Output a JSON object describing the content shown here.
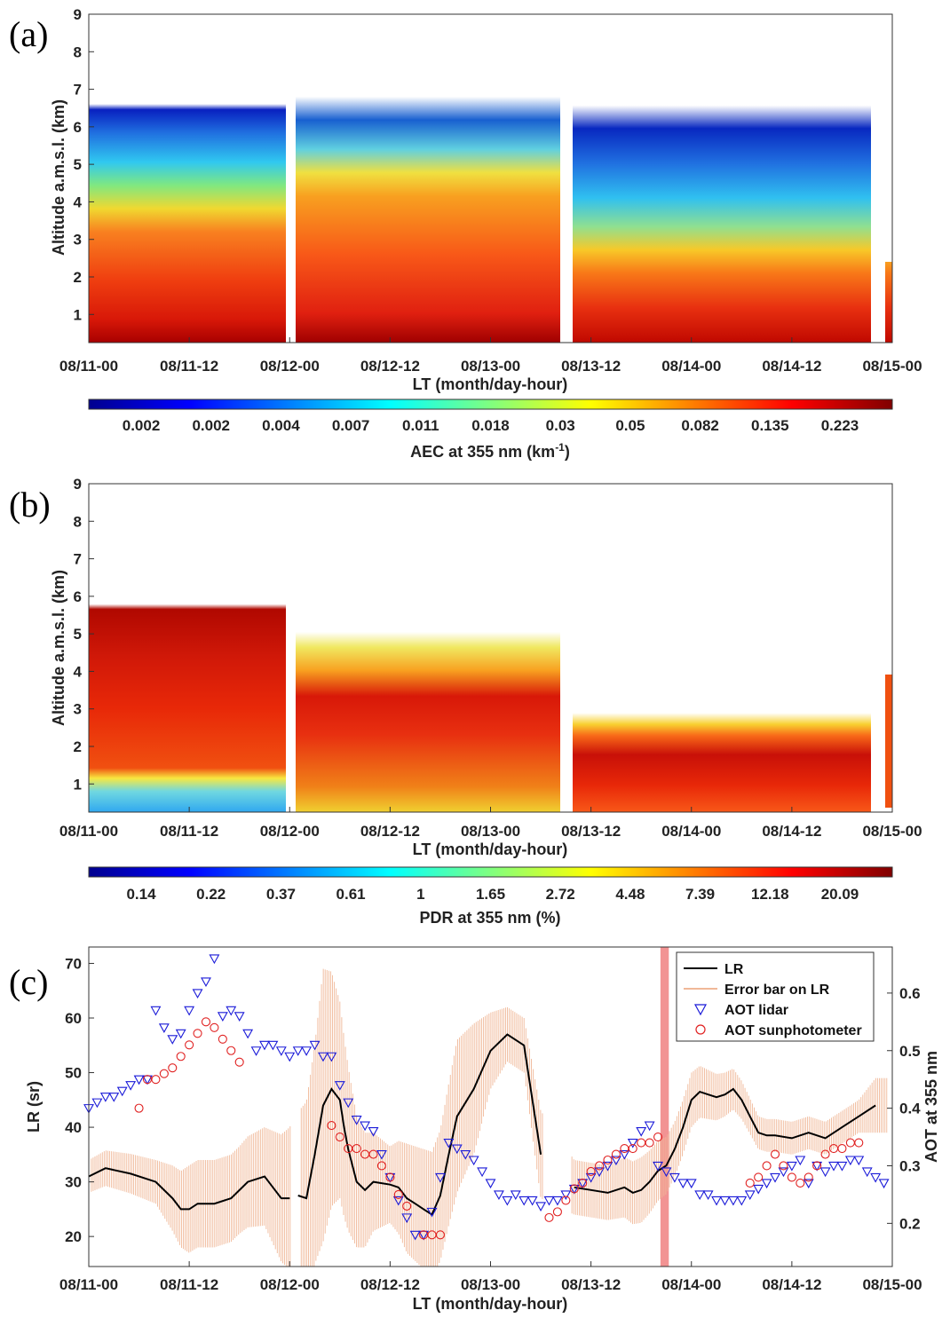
{
  "chart_data": [
    {
      "panel": "(a)",
      "type": "heatmap",
      "xlabel": "LT (month/day-hour)",
      "ylabel": "Altitude a.m.s.l. (km)",
      "x_ticks": [
        "08/11-00",
        "08/11-12",
        "08/12-00",
        "08/12-12",
        "08/13-00",
        "08/13-12",
        "08/14-00",
        "08/14-12",
        "08/15-00"
      ],
      "y_ticks": [
        "1",
        "2",
        "3",
        "4",
        "5",
        "6",
        "7",
        "8",
        "9"
      ],
      "ylim": [
        0.25,
        9
      ],
      "colorbar_label": "AEC at 355 nm (km",
      "colorbar_label_exp": "-1",
      "colorbar_label_end": ")",
      "colorbar_ticks": [
        "0.002",
        "0.002",
        "0.004",
        "0.007",
        "0.011",
        "0.018",
        "0.03",
        "0.05",
        "0.082",
        "0.135",
        "0.223"
      ],
      "colormap": "jet",
      "data_gaps_hours": [
        [
          54.3,
          55.2
        ],
        [
          101.5,
          102.1
        ]
      ]
    },
    {
      "panel": "(b)",
      "type": "heatmap",
      "xlabel": "LT (month/day-hour)",
      "ylabel": "Altitude a.m.s.l. (km)",
      "x_ticks": [
        "08/11-00",
        "08/11-12",
        "08/12-00",
        "08/12-12",
        "08/13-00",
        "08/13-12",
        "08/14-00",
        "08/14-12",
        "08/15-00"
      ],
      "y_ticks": [
        "1",
        "2",
        "3",
        "4",
        "5",
        "6",
        "7",
        "8",
        "9"
      ],
      "ylim": [
        0.25,
        9
      ],
      "colorbar_label": "PDR at 355 nm (%)",
      "colorbar_ticks": [
        "0.14",
        "0.22",
        "0.37",
        "0.61",
        "1",
        "1.65",
        "2.72",
        "4.48",
        "7.39",
        "12.18",
        "20.09"
      ],
      "colormap": "jet"
    },
    {
      "panel": "(c)",
      "type": "line",
      "xlabel": "LT (month/day-hour)",
      "ylabel": "LR (sr)",
      "y2label": "AOT at 355 nm",
      "x_ticks": [
        "08/11-00",
        "08/11-12",
        "08/12-00",
        "08/12-12",
        "08/13-00",
        "08/13-12",
        "08/14-00",
        "08/14-12",
        "08/15-00"
      ],
      "y_ticks": [
        "20",
        "30",
        "40",
        "50",
        "60",
        "70"
      ],
      "y2_ticks": [
        "0.2",
        "0.3",
        "0.4",
        "0.5",
        "0.6"
      ],
      "xlim_hours": [
        0,
        96
      ],
      "ylim": [
        14.5,
        73
      ],
      "y2lim": [
        0.125,
        0.68
      ],
      "highlight_hours": [
        68.3,
        69.3
      ],
      "legend": [
        "LR",
        "Error bar on LR",
        "AOT lidar",
        "AOT sunphotometer"
      ],
      "legend_position": "top-right",
      "colors": {
        "lr": "#000000",
        "error": "#f0b898",
        "aot_lidar": "#1a1ad8",
        "aot_sun": "#e02020",
        "highlight": "#f08080"
      },
      "lr": {
        "x": [
          0,
          2,
          5,
          8,
          10,
          11,
          12,
          13,
          15,
          17,
          19,
          21,
          22,
          23,
          24,
          25,
          26,
          27,
          28,
          29,
          30,
          30.5,
          31,
          32,
          33,
          34,
          36,
          37,
          38,
          39,
          40,
          41,
          42,
          43,
          44,
          46,
          48,
          50,
          52,
          54
        ],
        "y": [
          31,
          32.5,
          31.5,
          30,
          27,
          25,
          25,
          26,
          26,
          27,
          30,
          31,
          29,
          27,
          27,
          27.5,
          27,
          35,
          44,
          47,
          45,
          40,
          36,
          30,
          28.5,
          30,
          29.5,
          29,
          27,
          26,
          25,
          24,
          27.5,
          35,
          42,
          47,
          54,
          57,
          55,
          35
        ],
        "gap_after_index": 14
      },
      "lr_late": {
        "x": [
          58,
          60,
          62,
          64,
          65,
          66,
          67,
          68,
          69,
          70,
          71,
          72,
          73,
          74,
          75,
          76,
          77,
          78,
          79,
          80,
          81,
          82,
          84,
          86,
          88,
          90,
          92,
          94
        ],
        "y": [
          29,
          28.5,
          28,
          29,
          28,
          28.5,
          30,
          32,
          33,
          36,
          40,
          45,
          46.5,
          46,
          45.5,
          46,
          47,
          45,
          42,
          39,
          38.5,
          38.5,
          38,
          39,
          38,
          40,
          42,
          44
        ]
      },
      "lr_error_halfwidth": {
        "x": [
          0,
          8,
          10,
          12,
          18,
          21,
          24,
          27,
          28,
          30,
          32,
          34,
          36,
          38,
          40,
          42,
          44,
          46,
          48,
          50,
          52,
          54,
          58,
          62,
          66,
          70,
          72,
          76,
          80,
          84,
          88,
          92,
          94
        ],
        "h": [
          3,
          4,
          6,
          8,
          8,
          9,
          13,
          20,
          25,
          18,
          12,
          9,
          7,
          10,
          11,
          12,
          14,
          12,
          7,
          5,
          5,
          8,
          5,
          5,
          6,
          5,
          5,
          4,
          3,
          3,
          3,
          3,
          5
        ]
      },
      "aot_lidar": {
        "x": [
          0,
          1,
          2,
          3,
          4,
          5,
          6,
          7,
          8,
          9,
          10,
          11,
          12,
          13,
          14,
          15,
          16,
          17,
          18,
          19,
          20,
          21,
          22,
          23,
          24,
          25,
          26,
          27,
          28,
          29,
          30,
          31,
          32,
          33,
          34,
          35,
          36,
          37,
          38,
          39,
          40,
          41,
          42,
          43,
          44,
          45,
          46,
          47,
          48,
          49,
          50,
          51,
          52,
          53,
          54,
          55,
          56,
          57,
          58,
          59,
          60,
          61,
          62,
          63,
          64,
          65,
          66,
          67,
          68,
          69,
          70,
          71,
          72,
          73,
          74,
          75,
          76,
          77,
          78,
          79,
          80,
          81,
          82,
          83,
          84,
          85,
          86,
          87,
          88,
          89,
          90,
          91,
          92,
          93,
          94,
          95
        ],
        "y": [
          0.4,
          0.41,
          0.42,
          0.42,
          0.43,
          0.44,
          0.45,
          0.45,
          0.57,
          0.54,
          0.52,
          0.53,
          0.57,
          0.6,
          0.62,
          0.66,
          0.56,
          0.57,
          0.56,
          0.53,
          0.5,
          0.51,
          0.51,
          0.5,
          0.49,
          0.5,
          0.5,
          0.51,
          0.49,
          0.49,
          0.44,
          0.41,
          0.38,
          0.37,
          0.36,
          0.32,
          0.28,
          0.24,
          0.21,
          0.18,
          0.18,
          0.22,
          0.28,
          0.34,
          0.33,
          0.32,
          0.31,
          0.29,
          0.27,
          0.25,
          0.24,
          0.25,
          0.24,
          0.24,
          0.23,
          0.24,
          0.24,
          0.25,
          0.26,
          0.27,
          0.28,
          0.29,
          0.3,
          0.31,
          0.32,
          0.34,
          0.36,
          0.37,
          0.3,
          0.29,
          0.28,
          0.27,
          0.27,
          0.25,
          0.25,
          0.24,
          0.24,
          0.24,
          0.24,
          0.25,
          0.26,
          0.27,
          0.28,
          0.29,
          0.3,
          0.31,
          0.27,
          0.3,
          0.29,
          0.3,
          0.3,
          0.31,
          0.31,
          0.29,
          0.28,
          0.27
        ]
      },
      "aot_sun": {
        "x": [
          6,
          7,
          8,
          9,
          10,
          11,
          12,
          13,
          14,
          15,
          16,
          17,
          18,
          29,
          30,
          31,
          32,
          33,
          34,
          35,
          36,
          37,
          38,
          40,
          41,
          42,
          55,
          56,
          57,
          58,
          59,
          60,
          61,
          62,
          63,
          64,
          65,
          66,
          67,
          68,
          79,
          80,
          81,
          82,
          83,
          84,
          85,
          86,
          87,
          88,
          89,
          90,
          91,
          92
        ],
        "y": [
          0.4,
          0.45,
          0.45,
          0.46,
          0.47,
          0.49,
          0.51,
          0.53,
          0.55,
          0.54,
          0.52,
          0.5,
          0.48,
          0.37,
          0.35,
          0.33,
          0.33,
          0.32,
          0.32,
          0.3,
          0.28,
          0.25,
          0.23,
          0.18,
          0.18,
          0.18,
          0.21,
          0.22,
          0.24,
          0.26,
          0.27,
          0.29,
          0.3,
          0.31,
          0.32,
          0.33,
          0.33,
          0.34,
          0.34,
          0.35,
          0.27,
          0.28,
          0.3,
          0.32,
          0.3,
          0.28,
          0.27,
          0.28,
          0.3,
          0.32,
          0.33,
          0.33,
          0.34,
          0.34
        ]
      }
    }
  ]
}
